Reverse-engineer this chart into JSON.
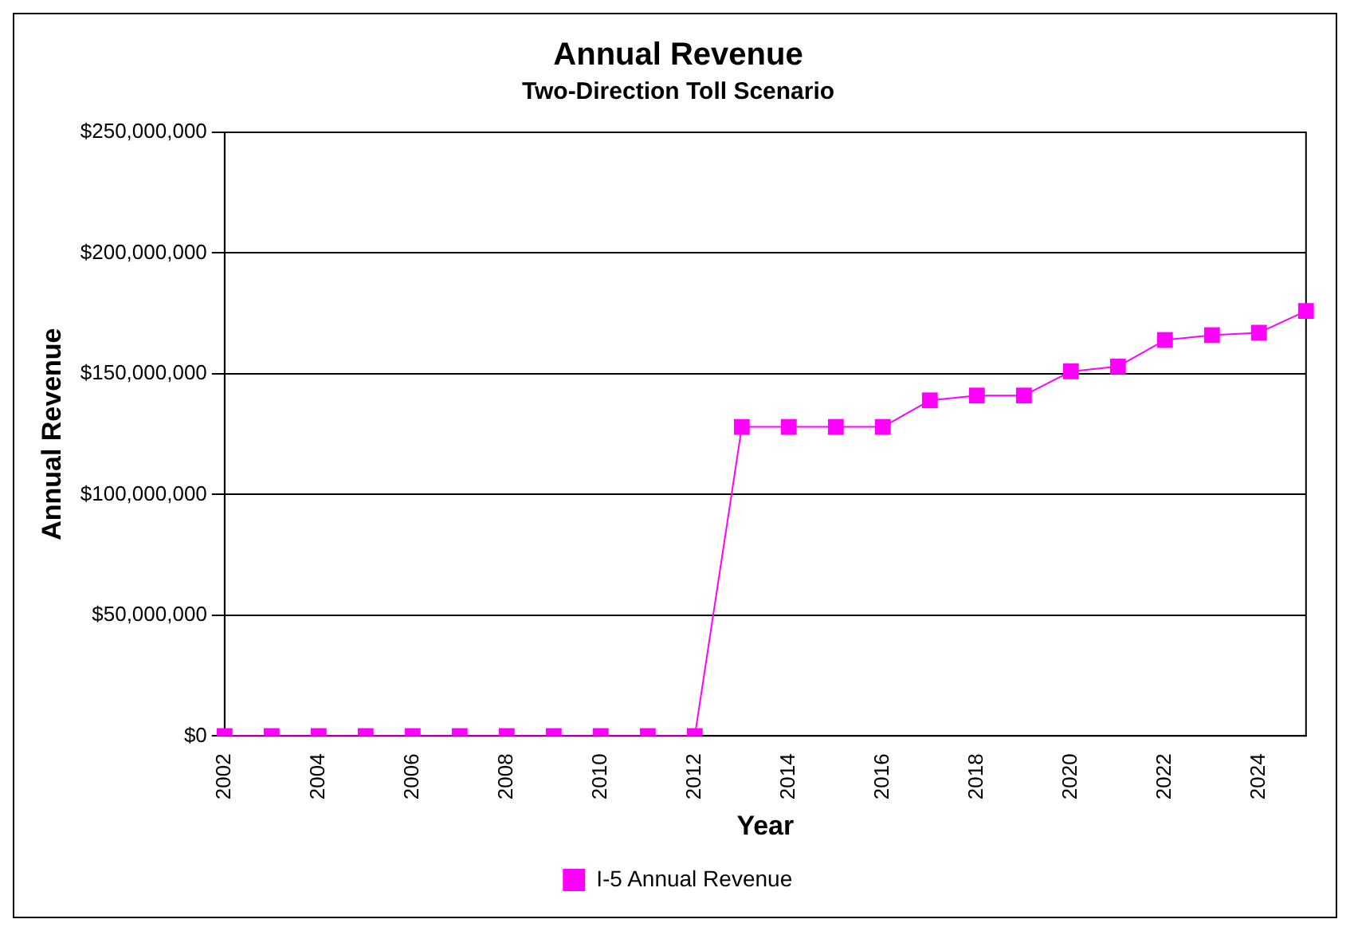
{
  "chart_data": {
    "type": "line",
    "title": "Annual Revenue",
    "subtitle": "Two-Direction Toll Scenario",
    "xlabel": "Year",
    "ylabel": "Annual Revenue",
    "categories": [
      "2002",
      null,
      "2004",
      null,
      "2006",
      null,
      "2008",
      null,
      "2010",
      null,
      "2012",
      null,
      "2014",
      null,
      "2016",
      null,
      "2018",
      null,
      "2020",
      null,
      "2022",
      null,
      "2024",
      null
    ],
    "series": [
      {
        "name": "I-5 Annual Revenue",
        "color": "#ff00ff",
        "values": [
          0,
          0,
          0,
          0,
          0,
          0,
          0,
          0,
          0,
          0,
          0,
          128000000,
          128000000,
          128000000,
          128000000,
          139000000,
          141000000,
          141000000,
          151000000,
          153000000,
          164000000,
          166000000,
          167000000,
          176000000
        ]
      }
    ],
    "ylim": [
      0,
      250000000
    ],
    "yticks": [
      {
        "value": 0,
        "label": "$0"
      },
      {
        "value": 50000000,
        "label": "$50,000,000"
      },
      {
        "value": 100000000,
        "label": "$100,000,000"
      },
      {
        "value": 150000000,
        "label": "$150,000,000"
      },
      {
        "value": 200000000,
        "label": "$200,000,000"
      },
      {
        "value": 250000000,
        "label": "$250,000,000"
      }
    ],
    "grid": "y",
    "legend": "bottom",
    "marker": "square",
    "line_style": "solid"
  }
}
